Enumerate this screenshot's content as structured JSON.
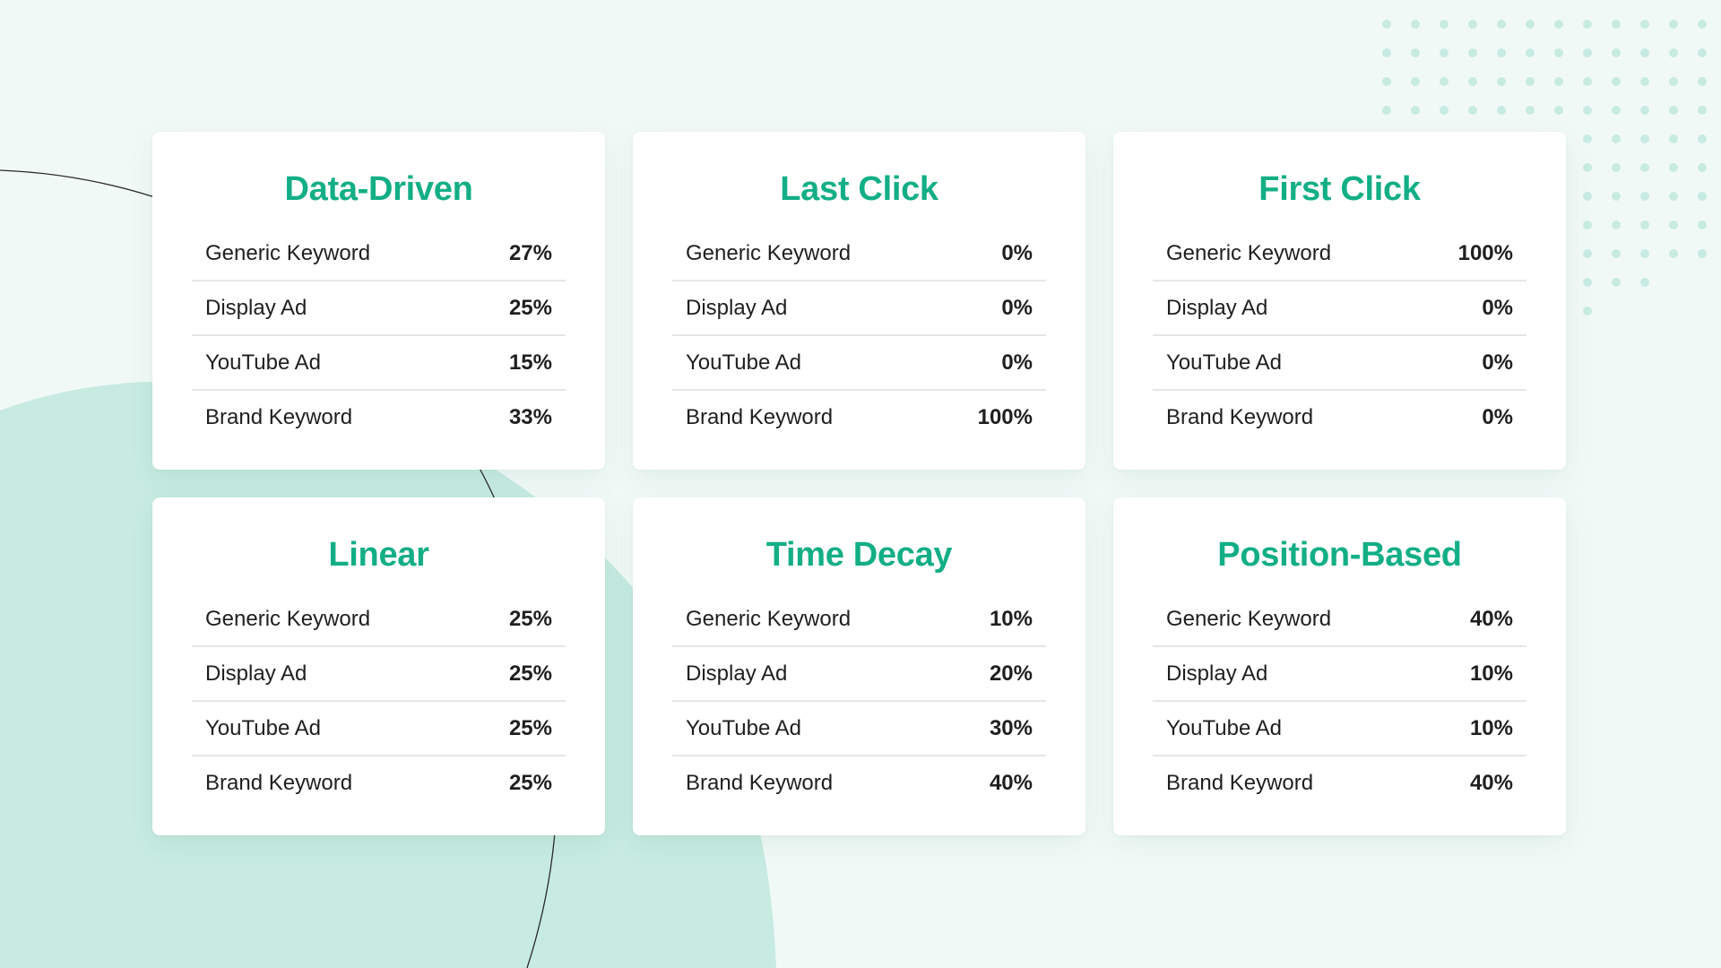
{
  "theme": {
    "accent": "#13ae85",
    "background": "#f1f9f7",
    "blob": "#c7ebe1",
    "dots": "#c7ebe1"
  },
  "models": [
    {
      "title": "Data-Driven",
      "rows": [
        {
          "label": "Generic Keyword",
          "value": "27%"
        },
        {
          "label": "Display Ad",
          "value": "25%"
        },
        {
          "label": "YouTube Ad",
          "value": "15%"
        },
        {
          "label": "Brand Keyword",
          "value": "33%"
        }
      ]
    },
    {
      "title": "Last Click",
      "rows": [
        {
          "label": "Generic Keyword",
          "value": "0%"
        },
        {
          "label": "Display Ad",
          "value": "0%"
        },
        {
          "label": "YouTube Ad",
          "value": "0%"
        },
        {
          "label": "Brand Keyword",
          "value": "100%"
        }
      ]
    },
    {
      "title": "First Click",
      "rows": [
        {
          "label": "Generic Keyword",
          "value": "100%"
        },
        {
          "label": "Display Ad",
          "value": "0%"
        },
        {
          "label": "YouTube Ad",
          "value": "0%"
        },
        {
          "label": "Brand Keyword",
          "value": "0%"
        }
      ]
    },
    {
      "title": "Linear",
      "rows": [
        {
          "label": "Generic Keyword",
          "value": "25%"
        },
        {
          "label": "Display Ad",
          "value": "25%"
        },
        {
          "label": "YouTube Ad",
          "value": "25%"
        },
        {
          "label": "Brand Keyword",
          "value": "25%"
        }
      ]
    },
    {
      "title": "Time Decay",
      "rows": [
        {
          "label": "Generic Keyword",
          "value": "10%"
        },
        {
          "label": "Display Ad",
          "value": "20%"
        },
        {
          "label": "YouTube Ad",
          "value": "30%"
        },
        {
          "label": "Brand Keyword",
          "value": "40%"
        }
      ]
    },
    {
      "title": "Position-Based",
      "rows": [
        {
          "label": "Generic Keyword",
          "value": "40%"
        },
        {
          "label": "Display Ad",
          "value": "10%"
        },
        {
          "label": "YouTube Ad",
          "value": "10%"
        },
        {
          "label": "Brand Keyword",
          "value": "40%"
        }
      ]
    }
  ]
}
